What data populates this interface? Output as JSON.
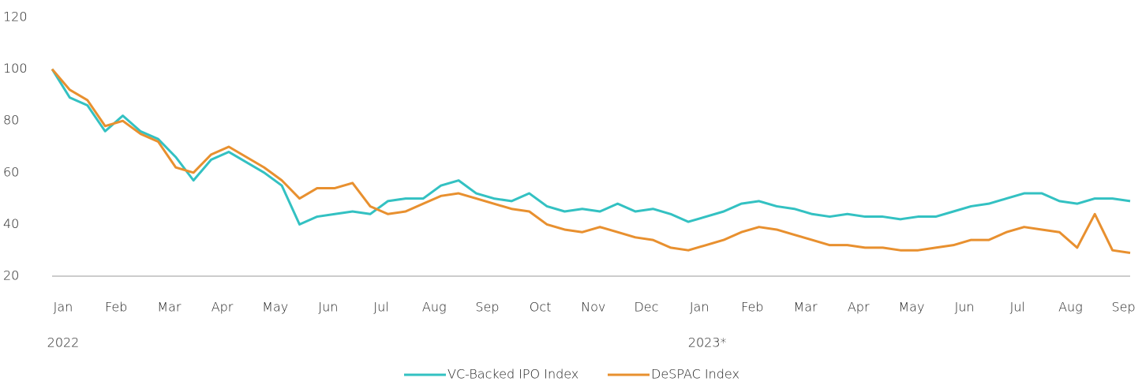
{
  "chart_data": {
    "type": "line",
    "categories": [
      "Jan",
      null,
      null,
      "Feb",
      null,
      null,
      "Mar",
      null,
      null,
      "Apr",
      null,
      null,
      "May",
      null,
      null,
      "Jun",
      null,
      null,
      "Jul",
      null,
      null,
      "Aug",
      null,
      null,
      "Sep",
      null,
      null,
      "Oct",
      null,
      null,
      "Nov",
      null,
      null,
      "Dec",
      null,
      null,
      "Jan",
      null,
      null,
      "Feb",
      null,
      null,
      "Mar",
      null,
      null,
      "Apr",
      null,
      null,
      "May",
      null,
      null,
      "Jun",
      null,
      null,
      "Jul",
      null,
      null,
      "Aug",
      null,
      null,
      "Sep",
      null
    ],
    "x_group_labels": [
      "2022",
      "2023*"
    ],
    "series": [
      {
        "name": "VC-Backed IPO Index",
        "color": "#33c1c2",
        "values": [
          100,
          89,
          86,
          76,
          82,
          76,
          73,
          66,
          57,
          65,
          68,
          64,
          60,
          55,
          40,
          43,
          44,
          45,
          44,
          49,
          50,
          50,
          55,
          57,
          52,
          50,
          49,
          52,
          47,
          45,
          46,
          45,
          48,
          45,
          46,
          44,
          41,
          43,
          45,
          48,
          49,
          47,
          46,
          44,
          43,
          44,
          43,
          43,
          42,
          43,
          43,
          45,
          47,
          48,
          50,
          52,
          52,
          49,
          48,
          50,
          50,
          49
        ]
      },
      {
        "name": "DeSPAC Index",
        "color": "#e8902f",
        "values": [
          100,
          92,
          88,
          78,
          80,
          75,
          72,
          62,
          60,
          67,
          70,
          66,
          62,
          57,
          50,
          54,
          54,
          56,
          47,
          44,
          45,
          48,
          51,
          52,
          50,
          48,
          46,
          45,
          40,
          38,
          37,
          39,
          37,
          35,
          34,
          31,
          30,
          32,
          34,
          37,
          39,
          38,
          36,
          34,
          32,
          32,
          31,
          31,
          30,
          30,
          31,
          32,
          34,
          34,
          37,
          39,
          38,
          37,
          31,
          44,
          30,
          29
        ]
      }
    ],
    "ylim": [
      20,
      120
    ],
    "yticks": [
      20,
      40,
      60,
      80,
      100,
      120
    ],
    "grid": false,
    "legend": "bottom"
  }
}
